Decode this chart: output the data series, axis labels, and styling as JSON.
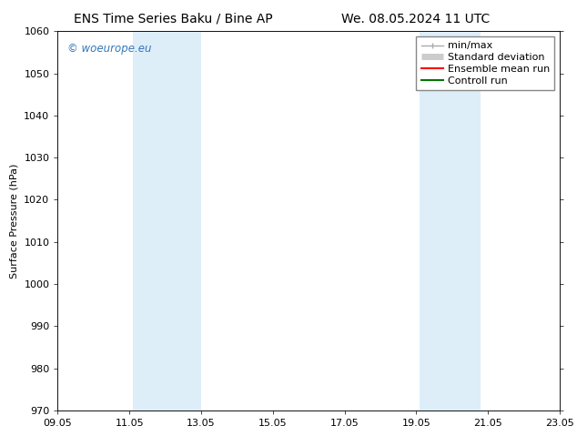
{
  "title_left": "ENS Time Series Baku / Bine AP",
  "title_right": "We. 08.05.2024 11 UTC",
  "ylabel": "Surface Pressure (hPa)",
  "ylim": [
    970,
    1060
  ],
  "yticks": [
    970,
    980,
    990,
    1000,
    1010,
    1020,
    1030,
    1040,
    1050,
    1060
  ],
  "xtick_labels": [
    "09.05",
    "11.05",
    "13.05",
    "15.05",
    "17.05",
    "19.05",
    "21.05",
    "23.05"
  ],
  "xtick_positions": [
    0,
    2,
    4,
    6,
    8,
    10,
    12,
    14
  ],
  "background_color": "#ffffff",
  "plot_bg_color": "#ffffff",
  "shaded_bands": [
    {
      "x_start": 2.1,
      "x_end": 4.0,
      "color": "#ddeef9"
    },
    {
      "x_start": 10.1,
      "x_end": 11.8,
      "color": "#ddeef9"
    }
  ],
  "watermark_text": "© woeurope.eu",
  "watermark_color": "#3377bb",
  "legend_items": [
    {
      "label": "min/max",
      "color": "#aaaaaa",
      "lw": 1.0
    },
    {
      "label": "Standard deviation",
      "color": "#cccccc",
      "lw": 5
    },
    {
      "label": "Ensemble mean run",
      "color": "#ff0000",
      "lw": 1.5
    },
    {
      "label": "Controll run",
      "color": "#007700",
      "lw": 1.5
    }
  ],
  "title_fontsize": 10,
  "tick_fontsize": 8,
  "ylabel_fontsize": 8,
  "legend_fontsize": 8
}
